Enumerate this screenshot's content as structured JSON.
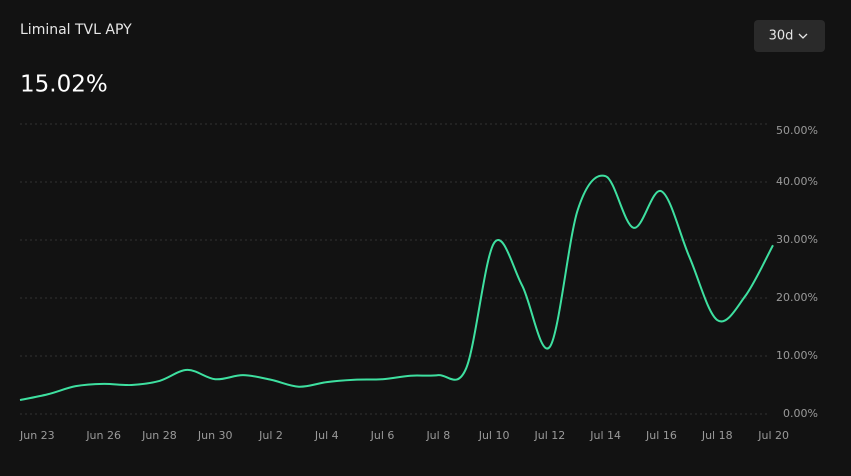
{
  "chart_data": {
    "type": "line",
    "title": "Liminal TVL APY",
    "headline": "15.02%",
    "range_selector": "30d",
    "categories": [
      "Jun 23",
      null,
      null,
      "Jun 26",
      null,
      "Jun 28",
      null,
      "Jun 30",
      null,
      "Jul 2",
      null,
      "Jul 4",
      null,
      "Jul 6",
      null,
      "Jul 8",
      null,
      "Jul 10",
      null,
      "Jul 12",
      null,
      "Jul 14",
      null,
      "Jul 16",
      null,
      "Jul 18",
      null,
      "Jul 20"
    ],
    "series": [
      {
        "name": "APY",
        "color": "#3ee0a0",
        "values": [
          2.4,
          3.4,
          4.8,
          5.2,
          5.0,
          5.7,
          7.6,
          6.0,
          6.7,
          5.9,
          4.7,
          5.5,
          5.9,
          6.0,
          6.6,
          6.7,
          7.9,
          29.5,
          22.2,
          11.6,
          35.2,
          41.0,
          32.1,
          38.4,
          27.1,
          16.2,
          20.3,
          29.1
        ]
      }
    ],
    "ylim": [
      0,
      50
    ],
    "yticks": [
      {
        "value": 0,
        "label": "0.00%"
      },
      {
        "value": 10,
        "label": "10.00%"
      },
      {
        "value": 20,
        "label": "20.00%"
      },
      {
        "value": 30,
        "label": "30.00%"
      },
      {
        "value": 40,
        "label": "40.00%"
      },
      {
        "value": 50,
        "label": "50.00%"
      }
    ],
    "grid": true
  }
}
